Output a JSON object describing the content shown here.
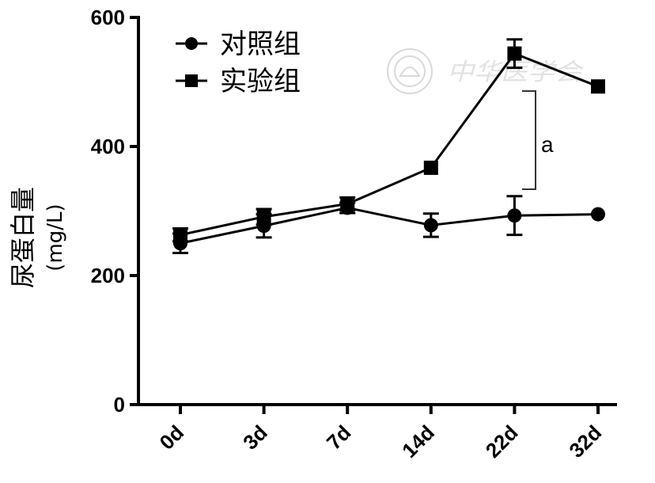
{
  "chart_data": {
    "type": "line",
    "title": "",
    "ylabel": "尿蛋白量",
    "ylabel_unit": "(mg/L)",
    "xlabel": "",
    "categories": [
      "0d",
      "3d",
      "7d",
      "14d",
      "22d",
      "32d"
    ],
    "ylim": [
      0,
      600
    ],
    "yticks": [
      0,
      200,
      400,
      600
    ],
    "grid": false,
    "legend_position": "top-left",
    "series": [
      {
        "name": "对照组",
        "marker": "circle",
        "values": [
          250,
          277,
          305,
          278,
          293,
          295
        ],
        "errors": [
          15,
          18,
          8,
          18,
          30,
          0
        ]
      },
      {
        "name": "实验组",
        "marker": "square",
        "values": [
          263,
          291,
          311,
          367,
          544,
          493
        ],
        "errors": [
          10,
          12,
          10,
          0,
          22,
          0
        ]
      }
    ],
    "annotations": [
      {
        "text": "a",
        "between": [
          "22d"
        ]
      }
    ],
    "watermark": "中华医学会",
    "colors": {
      "line": "#000000"
    }
  }
}
